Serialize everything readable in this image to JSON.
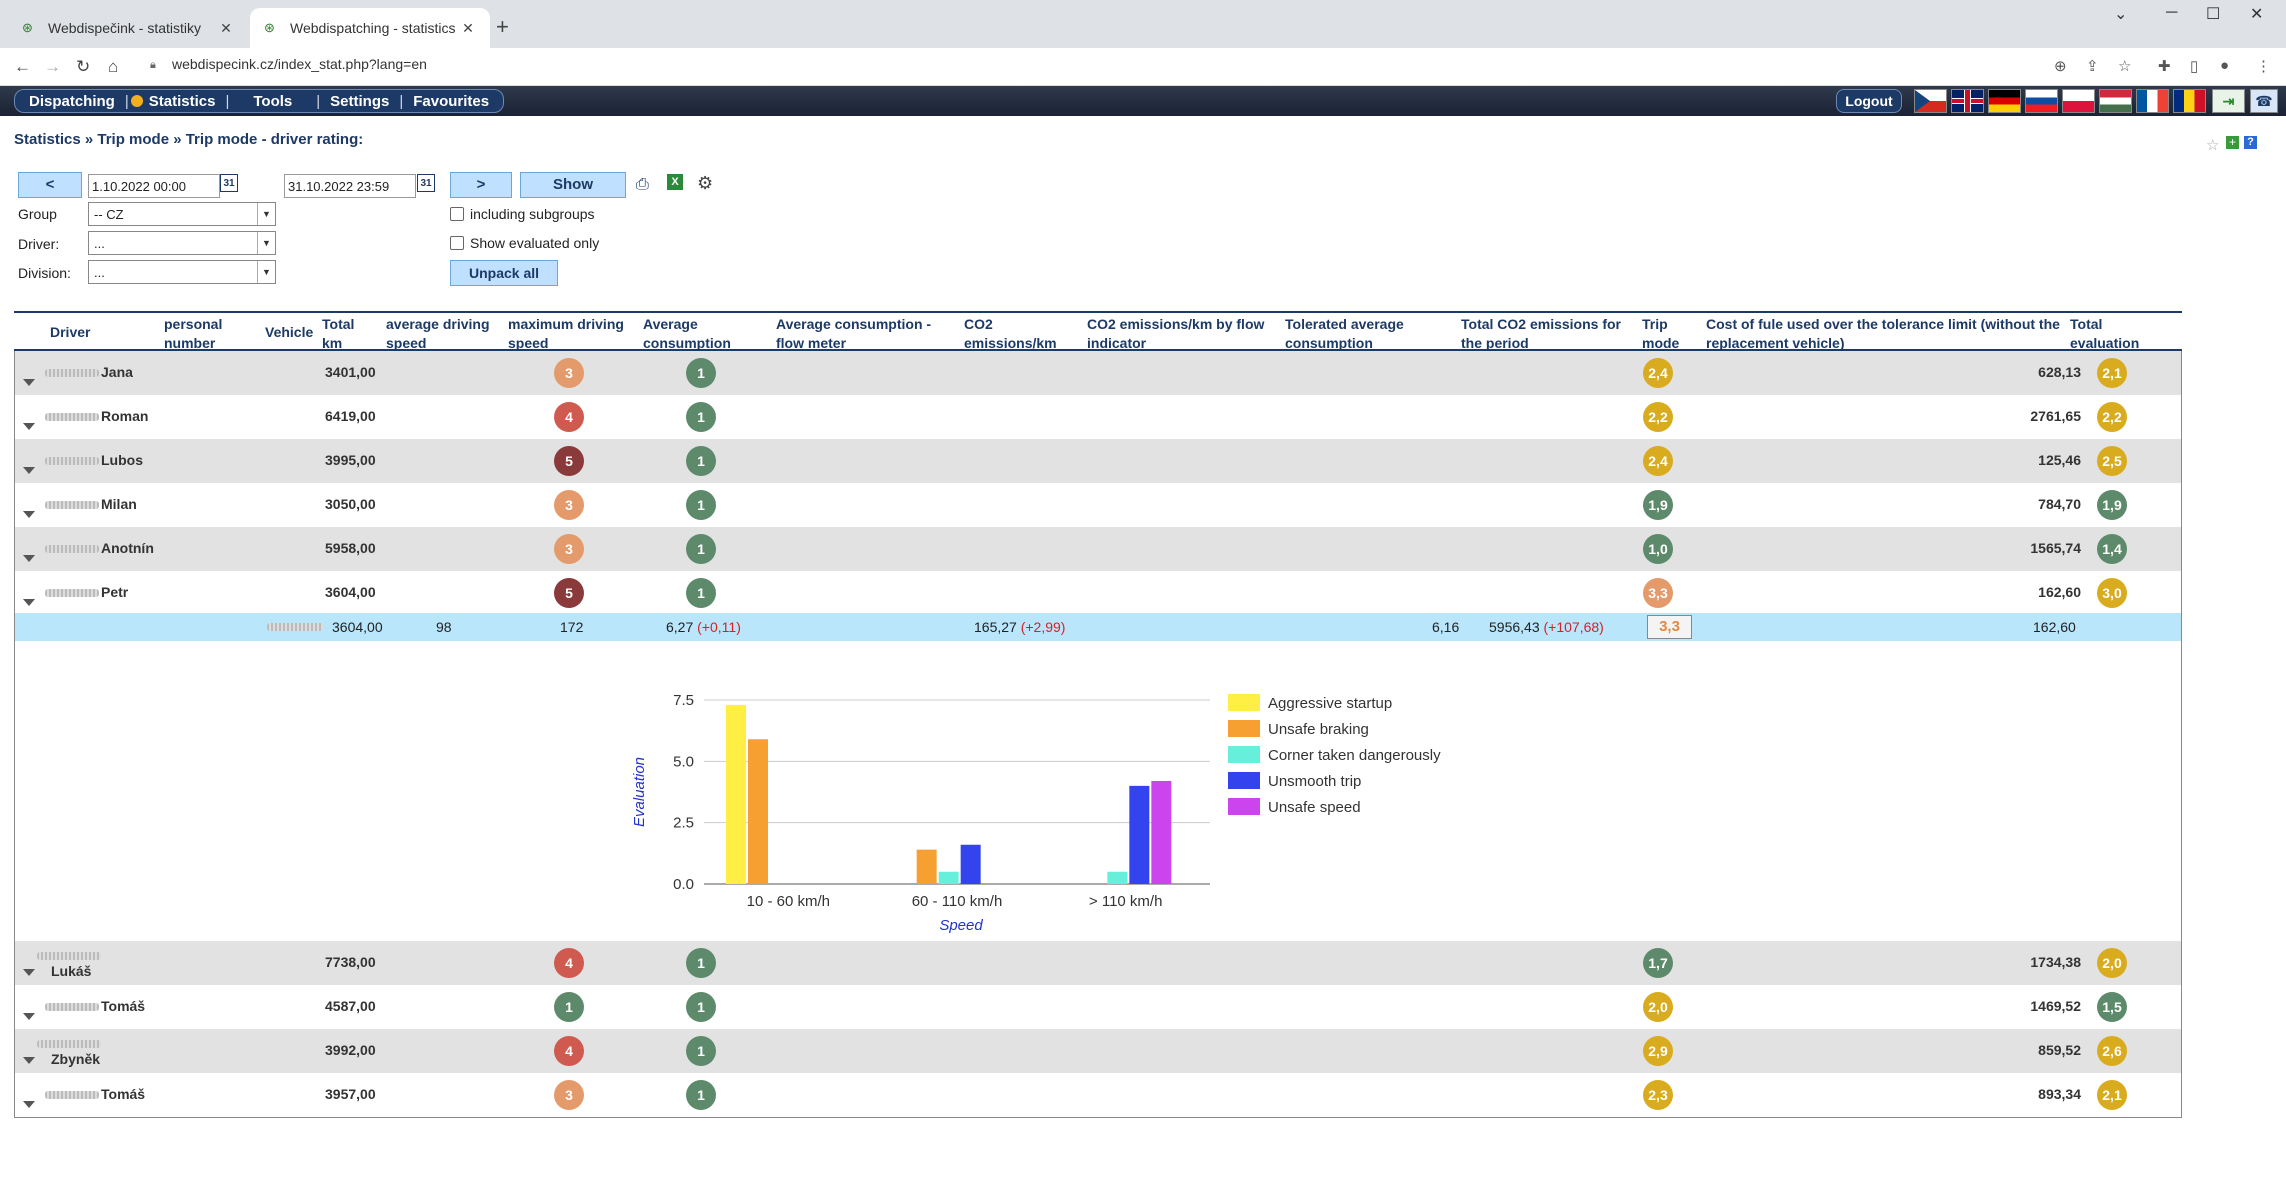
{
  "browser": {
    "tabs": [
      {
        "title": "Webdispečink - statistiky"
      },
      {
        "title": "Webdispatching - statistics"
      }
    ],
    "url": "webdispecink.cz/index_stat.php?lang=en"
  },
  "menu": {
    "items": [
      "Dispatching",
      "Statistics",
      "Tools",
      "Settings",
      "Favourites"
    ],
    "logout": "Logout",
    "flags": [
      "cz",
      "gb",
      "de",
      "sk",
      "pl",
      "hu",
      "fr",
      "ro"
    ]
  },
  "breadcrumb": "Statistics » Trip mode » Trip mode - driver rating:",
  "filters": {
    "prev": "<",
    "next": ">",
    "show": "Show",
    "date_from": "1.10.2022 00:00",
    "date_to": "31.10.2022 23:59",
    "cal": "31",
    "group_label": "Group",
    "group_value": "-- CZ",
    "driver_label": "Driver:",
    "driver_value": "...",
    "division_label": "Division:",
    "division_value": "...",
    "including_subgroups": "including subgroups",
    "show_evaluated_only": "Show evaluated only",
    "unpack_all": "Unpack all"
  },
  "table": {
    "headers": [
      "Driver",
      "personal number",
      "Vehicle",
      "Total km",
      "average driving speed",
      "maximum driving speed",
      "Average consumption",
      "Average consumption - flow meter",
      "CO2 emissions/km",
      "CO2 emissions/km by flow indicator",
      "Tolerated average consumption",
      "Total CO2 emissions for the period",
      "Trip mode",
      "Cost of fule used over the tolerance limit (without the replacement vehicle)",
      "Total evaluation"
    ],
    "rows": [
      {
        "name": "Jana",
        "km": "3401,00",
        "max": "3",
        "max_color": "#e49a6a",
        "avg": "1",
        "trip": "2,4",
        "trip_color": "#d9ab1e",
        "cost": "628,13",
        "total": "2,1",
        "total_color": "#d9ab1e"
      },
      {
        "name": "Roman",
        "km": "6419,00",
        "max": "4",
        "max_color": "#cf5a4f",
        "avg": "1",
        "trip": "2,2",
        "trip_color": "#d9ab1e",
        "cost": "2761,65",
        "total": "2,2",
        "total_color": "#d9ab1e"
      },
      {
        "name": "Lubos",
        "km": "3995,00",
        "max": "5",
        "max_color": "#8a3a3a",
        "avg": "1",
        "trip": "2,4",
        "trip_color": "#d9ab1e",
        "cost": "125,46",
        "total": "2,5",
        "total_color": "#d9ab1e"
      },
      {
        "name": "Milan",
        "km": "3050,00",
        "max": "3",
        "max_color": "#e49a6a",
        "avg": "1",
        "trip": "1,9",
        "trip_color": "#5e8a6c",
        "cost": "784,70",
        "total": "1,9",
        "total_color": "#5e8a6c"
      },
      {
        "name": "Anotnín",
        "km": "5958,00",
        "max": "3",
        "max_color": "#e49a6a",
        "avg": "1",
        "trip": "1,0",
        "trip_color": "#5e8a6c",
        "cost": "1565,74",
        "total": "1,4",
        "total_color": "#5e8a6c"
      },
      {
        "name": "Petr",
        "km": "3604,00",
        "max": "5",
        "max_color": "#8a3a3a",
        "avg": "1",
        "trip": "3,3",
        "trip_color": "#e49a6a",
        "cost": "162,60",
        "total": "3,0",
        "total_color": "#d9ab1e"
      }
    ],
    "detail": {
      "km": "3604,00",
      "avg_speed": "98",
      "max_speed": "172",
      "avg_cons": "6,27",
      "avg_cons_diff": "(+0,11)",
      "co2": "165,27",
      "co2_diff": "(+2,99)",
      "tolerated": "6,16",
      "total_co2": "5956,43",
      "total_co2_diff": "(+107,68)",
      "trip": "3,3",
      "cost": "162,60"
    },
    "rows_after": [
      {
        "name": "Lukáš",
        "km": "7738,00",
        "max": "4",
        "max_color": "#cf5a4f",
        "avg": "1",
        "trip": "1,7",
        "trip_color": "#5e8a6c",
        "cost": "1734,38",
        "total": "2,0",
        "total_color": "#d9ab1e"
      },
      {
        "name": "Tomáš",
        "km": "4587,00",
        "max": "1",
        "max_color": "#5e8a6c",
        "avg": "1",
        "trip": "2,0",
        "trip_color": "#d9ab1e",
        "cost": "1469,52",
        "total": "1,5",
        "total_color": "#5e8a6c"
      },
      {
        "name": "Zbyněk",
        "km": "3992,00",
        "max": "4",
        "max_color": "#cf5a4f",
        "avg": "1",
        "trip": "2,9",
        "trip_color": "#d9ab1e",
        "cost": "859,52",
        "total": "2,6",
        "total_color": "#d9ab1e"
      },
      {
        "name": "Tomáš",
        "km": "3957,00",
        "max": "3",
        "max_color": "#e49a6a",
        "avg": "1",
        "trip": "2,3",
        "trip_color": "#d9ab1e",
        "cost": "893,34",
        "total": "2,1",
        "total_color": "#d9ab1e"
      }
    ]
  },
  "chart_data": {
    "type": "bar",
    "categories": [
      "10 - 60 km/h",
      "60 - 110 km/h",
      "> 110 km/h"
    ],
    "xlabel": "Speed",
    "ylabel": "Evaluation",
    "ylim": [
      0,
      7.5
    ],
    "yticks": [
      "0.0",
      "2.5",
      "5.0",
      "7.5"
    ],
    "legend_position": "right",
    "series": [
      {
        "name": "Aggressive startup",
        "color": "#ffee44",
        "values": [
          7.3,
          0,
          0
        ]
      },
      {
        "name": "Unsafe braking",
        "color": "#f5a030",
        "values": [
          5.9,
          1.4,
          0
        ]
      },
      {
        "name": "Corner taken dangerously",
        "color": "#66f0dc",
        "values": [
          0,
          0.5,
          0.5
        ]
      },
      {
        "name": "Unsmooth trip",
        "color": "#3344ee",
        "values": [
          0,
          1.6,
          4.0
        ]
      },
      {
        "name": "Unsafe speed",
        "color": "#cc44ee",
        "values": [
          0,
          0,
          4.2
        ]
      }
    ]
  }
}
